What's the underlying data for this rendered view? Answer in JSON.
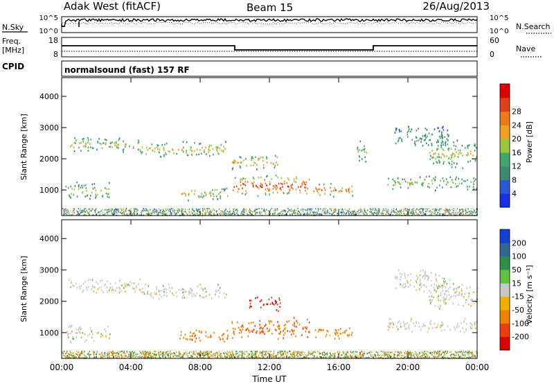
{
  "header": {
    "title": "Adak West (fitACF)",
    "beam": "Beam 15",
    "date": "26/Aug/2013"
  },
  "top_panels": {
    "nsky_label": "N.Sky",
    "nsearch_label": "N.Search",
    "freq_label_line1": "Freq.",
    "freq_label_line2": "[MHz]",
    "nave_label": "Nave",
    "cpid_label": "CPID",
    "cpid_text": "normalsound (fast) 157 RF",
    "noise_ticks": [
      "10^5",
      "10^0"
    ],
    "freq_ticks": [
      "18",
      "8"
    ],
    "nave_ticks": [
      "60",
      "0"
    ]
  },
  "chart_data": [
    {
      "type": "heatmap",
      "name": "power",
      "ylabel": "Slant Range [km]",
      "xlabel": "",
      "x_ticks": [
        "00:00",
        "04:00",
        "08:00",
        "12:00",
        "16:00",
        "20:00",
        "00:00"
      ],
      "xlim_hours": [
        0,
        24
      ],
      "y_ticks": [
        1000,
        2000,
        3000,
        4000
      ],
      "ylim": [
        180,
        4600
      ],
      "colorbar": {
        "label": "Power [dB]",
        "ticks": [
          "4",
          "8",
          "12",
          "16",
          "20",
          "24",
          "28"
        ],
        "range": [
          0,
          30
        ],
        "colors": [
          "#1530e6",
          "#2a58d8",
          "#3d8a70",
          "#40a868",
          "#98c840",
          "#f0a020",
          "#f07818",
          "#e04018",
          "#e00000"
        ]
      },
      "scatter_bands": [
        {
          "t0": 0.3,
          "t1": 4.5,
          "r0": 2200,
          "r1": 2750,
          "level": 13
        },
        {
          "t0": 4.5,
          "t1": 9.5,
          "r0": 2050,
          "r1": 2600,
          "level": 14
        },
        {
          "t0": 9.8,
          "t1": 12.5,
          "r0": 1650,
          "r1": 2200,
          "level": 16
        },
        {
          "t0": 0.2,
          "t1": 2.8,
          "r0": 700,
          "r1": 1300,
          "level": 13
        },
        {
          "t0": 6.8,
          "t1": 9.6,
          "r0": 680,
          "r1": 1150,
          "level": 14
        },
        {
          "t0": 9.8,
          "t1": 14.3,
          "r0": 780,
          "r1": 1550,
          "level": 22
        },
        {
          "t0": 14.5,
          "t1": 16.8,
          "r0": 800,
          "r1": 1250,
          "level": 20
        },
        {
          "t0": 17.0,
          "t1": 17.6,
          "r0": 1800,
          "r1": 2700,
          "level": 11
        },
        {
          "t0": 18.8,
          "t1": 24.0,
          "r0": 1000,
          "r1": 1500,
          "level": 12
        },
        {
          "t0": 19.2,
          "t1": 22.4,
          "r0": 2300,
          "r1": 3100,
          "level": 8
        },
        {
          "t0": 21.2,
          "t1": 24.0,
          "r0": 1650,
          "r1": 2700,
          "level": 13
        }
      ]
    },
    {
      "type": "heatmap",
      "name": "velocity",
      "ylabel": "Slant Range [km]",
      "xlabel": "Time UT",
      "x_ticks": [
        "00:00",
        "04:00",
        "08:00",
        "12:00",
        "16:00",
        "20:00",
        "00:00"
      ],
      "xlim_hours": [
        0,
        24
      ],
      "y_ticks": [
        1000,
        2000,
        3000,
        4000
      ],
      "ylim": [
        180,
        4600
      ],
      "colorbar": {
        "label": "Velocity [m s⁻¹]",
        "ticks": [
          "200",
          "100",
          "50",
          "15",
          "-15",
          "-50",
          "-100",
          "-200"
        ],
        "colors": [
          "#1540d8",
          "#2e6a90",
          "#2e9048",
          "#60c040",
          "#c8c8c8",
          "#f0b000",
          "#f08000",
          "#e84010",
          "#e00000"
        ]
      },
      "scatter_bands": [
        {
          "t0": 0.3,
          "t1": 4.5,
          "r0": 2200,
          "r1": 2750,
          "vel": 0
        },
        {
          "t0": 4.5,
          "t1": 9.5,
          "r0": 2050,
          "r1": 2600,
          "vel": 0
        },
        {
          "t0": 10.8,
          "t1": 12.6,
          "r0": 1700,
          "r1": 2200,
          "vel": -150
        },
        {
          "t0": 0.2,
          "t1": 2.8,
          "r0": 700,
          "r1": 1300,
          "vel": 0
        },
        {
          "t0": 6.8,
          "t1": 9.6,
          "r0": 680,
          "r1": 1150,
          "vel": -60
        },
        {
          "t0": 9.8,
          "t1": 14.3,
          "r0": 780,
          "r1": 1550,
          "vel": -70
        },
        {
          "t0": 14.5,
          "t1": 16.8,
          "r0": 800,
          "r1": 1250,
          "vel": -50
        },
        {
          "t0": 18.8,
          "t1": 24.0,
          "r0": 1000,
          "r1": 1500,
          "vel": 0
        },
        {
          "t0": 19.2,
          "t1": 22.4,
          "r0": 2300,
          "r1": 3100,
          "vel": 0
        },
        {
          "t0": 21.2,
          "t1": 24.0,
          "r0": 1650,
          "r1": 2700,
          "vel": 0
        }
      ]
    }
  ]
}
